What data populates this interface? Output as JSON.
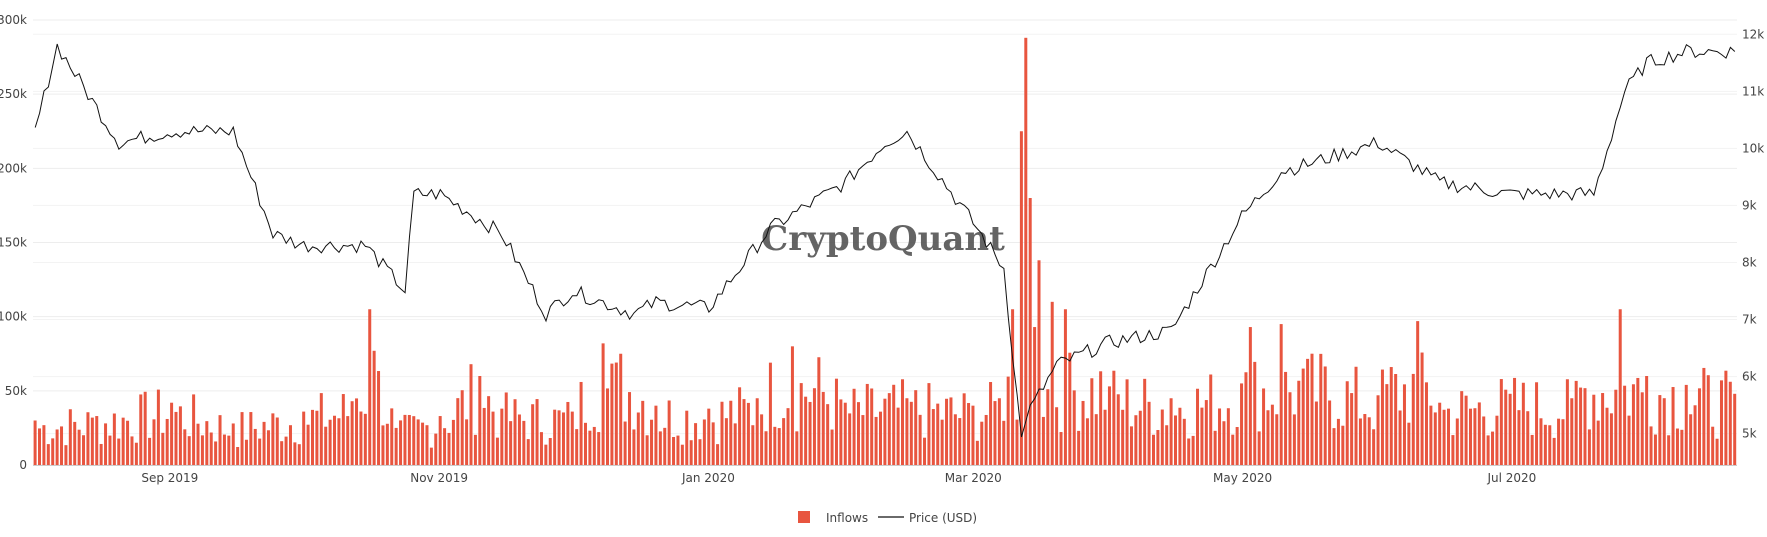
{
  "chart_data": {
    "type": "bar+line",
    "watermark": "CryptoQuant",
    "start_date": "2019-08-01",
    "end_date": "2020-08-21",
    "x_ticks": [
      {
        "date": "2019-09-01",
        "label": "Sep 2019"
      },
      {
        "date": "2019-11-01",
        "label": "Nov 2019"
      },
      {
        "date": "2020-01-01",
        "label": "Jan 2020"
      },
      {
        "date": "2020-03-01",
        "label": "Mar 2020"
      },
      {
        "date": "2020-05-01",
        "label": "May 2020"
      },
      {
        "date": "2020-07-01",
        "label": "Jul 2020"
      }
    ],
    "y_left": {
      "min": 0,
      "max": 300000,
      "ticks": [
        {
          "value": 0,
          "label": "0"
        },
        {
          "value": 50000,
          "label": "50k"
        },
        {
          "value": 100000,
          "label": "100k"
        },
        {
          "value": 150000,
          "label": "150k"
        },
        {
          "value": 200000,
          "label": "200k"
        },
        {
          "value": 250000,
          "label": "250k"
        },
        {
          "value": 300000,
          "label": "300k"
        }
      ]
    },
    "y_right": {
      "min": 4450,
      "max": 12250,
      "ticks": [
        {
          "value": 5000,
          "label": "5k"
        },
        {
          "value": 6000,
          "label": "6k"
        },
        {
          "value": 7000,
          "label": "7k"
        },
        {
          "value": 8000,
          "label": "8k"
        },
        {
          "value": 9000,
          "label": "9k"
        },
        {
          "value": 10000,
          "label": "10k"
        },
        {
          "value": 11000,
          "label": "11k"
        },
        {
          "value": 12000,
          "label": "12k"
        }
      ]
    },
    "grid": true,
    "legend_position": "bottom-center",
    "series": [
      {
        "name": "Inflows",
        "type": "bar",
        "color": "#e8553f",
        "axis": "left",
        "points": [
          [
            "2019-08-01",
            30000
          ],
          [
            "2019-08-15",
            33000
          ],
          [
            "2019-09-01",
            42000
          ],
          [
            "2019-09-15",
            28000
          ],
          [
            "2019-10-01",
            36000
          ],
          [
            "2019-10-12",
            43000
          ],
          [
            "2019-10-16",
            105000
          ],
          [
            "2019-10-17",
            77000
          ],
          [
            "2019-10-22",
            25000
          ],
          [
            "2019-11-01",
            33000
          ],
          [
            "2019-11-10",
            60000
          ],
          [
            "2019-11-15",
            38000
          ],
          [
            "2019-12-01",
            36000
          ],
          [
            "2019-12-08",
            82000
          ],
          [
            "2019-12-12",
            75000
          ],
          [
            "2019-12-20",
            40000
          ],
          [
            "2020-01-01",
            38000
          ],
          [
            "2020-01-12",
            45000
          ],
          [
            "2020-01-20",
            80000
          ],
          [
            "2020-02-01",
            42000
          ],
          [
            "2020-02-15",
            45000
          ],
          [
            "2020-03-01",
            40000
          ],
          [
            "2020-03-07",
            45000
          ],
          [
            "2020-03-10",
            105000
          ],
          [
            "2020-03-12",
            225000
          ],
          [
            "2020-03-13",
            288000
          ],
          [
            "2020-03-14",
            180000
          ],
          [
            "2020-03-15",
            93000
          ],
          [
            "2020-03-16",
            138000
          ],
          [
            "2020-03-19",
            110000
          ],
          [
            "2020-03-22",
            105000
          ],
          [
            "2020-04-01",
            53000
          ],
          [
            "2020-04-15",
            45000
          ],
          [
            "2020-05-01",
            55000
          ],
          [
            "2020-05-03",
            93000
          ],
          [
            "2020-05-10",
            95000
          ],
          [
            "2020-05-15",
            65000
          ],
          [
            "2020-06-01",
            47000
          ],
          [
            "2020-06-10",
            97000
          ],
          [
            "2020-06-15",
            42000
          ],
          [
            "2020-07-01",
            48000
          ],
          [
            "2020-07-15",
            45000
          ],
          [
            "2020-07-26",
            105000
          ],
          [
            "2020-08-01",
            60000
          ],
          [
            "2020-08-10",
            54000
          ],
          [
            "2020-08-21",
            48000
          ]
        ]
      },
      {
        "name": "Price (USD)",
        "type": "line",
        "color": "#111111",
        "axis": "right",
        "points": [
          [
            "2019-08-01",
            10300
          ],
          [
            "2019-08-06",
            11800
          ],
          [
            "2019-08-20",
            10100
          ],
          [
            "2019-09-01",
            10300
          ],
          [
            "2019-09-15",
            10300
          ],
          [
            "2019-09-24",
            8500
          ],
          [
            "2019-10-01",
            8300
          ],
          [
            "2019-10-15",
            8300
          ],
          [
            "2019-10-24",
            7500
          ],
          [
            "2019-10-26",
            9200
          ],
          [
            "2019-11-01",
            9200
          ],
          [
            "2019-11-15",
            8500
          ],
          [
            "2019-11-25",
            7100
          ],
          [
            "2019-12-01",
            7500
          ],
          [
            "2019-12-15",
            7100
          ],
          [
            "2019-12-20",
            7300
          ],
          [
            "2020-01-01",
            7200
          ],
          [
            "2020-01-15",
            8600
          ],
          [
            "2020-02-01",
            9400
          ],
          [
            "2020-02-10",
            10100
          ],
          [
            "2020-02-15",
            10300
          ],
          [
            "2020-03-01",
            8700
          ],
          [
            "2020-03-08",
            7900
          ],
          [
            "2020-03-12",
            4900
          ],
          [
            "2020-03-13",
            5300
          ],
          [
            "2020-03-20",
            6200
          ],
          [
            "2020-04-01",
            6600
          ],
          [
            "2020-04-15",
            6800
          ],
          [
            "2020-05-01",
            8800
          ],
          [
            "2020-05-10",
            9600
          ],
          [
            "2020-05-15",
            9700
          ],
          [
            "2020-06-01",
            10100
          ],
          [
            "2020-06-15",
            9400
          ],
          [
            "2020-07-01",
            9200
          ],
          [
            "2020-07-20",
            9200
          ],
          [
            "2020-07-27",
            11000
          ],
          [
            "2020-08-01",
            11500
          ],
          [
            "2020-08-10",
            11700
          ],
          [
            "2020-08-21",
            11700
          ]
        ]
      }
    ],
    "legend": [
      {
        "label": "Inflows",
        "symbol": "square",
        "color": "#e8553f"
      },
      {
        "label": "Price (USD)",
        "symbol": "line",
        "color": "#111111"
      }
    ]
  }
}
